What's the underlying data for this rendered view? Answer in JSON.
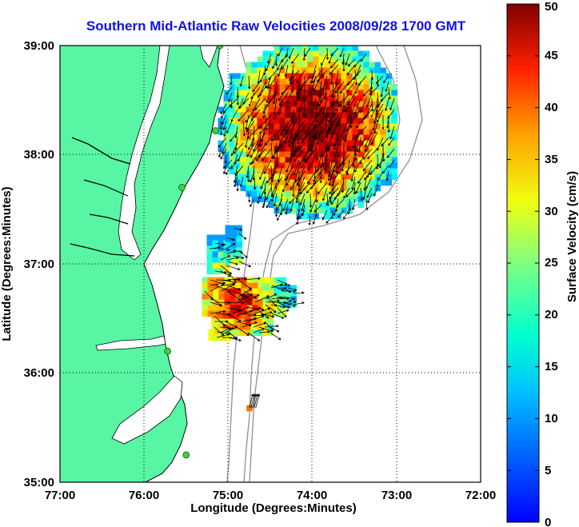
{
  "title": "Southern Mid-Atlantic Raw Velocities 2008/09/28 1700 GMT",
  "map": {
    "xlabel": "Longitude (Degrees:Minutes)",
    "ylabel": "Latitude (Degrees:Minutes)",
    "lon_ticks": [
      "77:00",
      "76:00",
      "75:00",
      "74:00",
      "73:00",
      "72:00"
    ],
    "lat_ticks": [
      "39:00",
      "38:00",
      "37:00",
      "36:00",
      "35:00"
    ],
    "xlim": [
      -77,
      -72
    ],
    "ylim": [
      35,
      39
    ],
    "grid": "dotted",
    "land_color": "#58f5a4",
    "stations": [
      {
        "lon": -75.1,
        "lat": 39.0
      },
      {
        "lon": -75.15,
        "lat": 38.22
      },
      {
        "lon": -75.55,
        "lat": 37.7
      },
      {
        "lon": -75.72,
        "lat": 36.2
      },
      {
        "lon": -75.5,
        "lat": 35.25
      }
    ]
  },
  "colorbar": {
    "label": "Surface Velocity (cm/s)",
    "ticks": [
      "0",
      "5",
      "10",
      "15",
      "20",
      "25",
      "30",
      "35",
      "40",
      "45",
      "50"
    ],
    "min": 0,
    "max": 50,
    "colormap": "jet"
  },
  "chart_data": {
    "type": "heatmap",
    "title": "Southern Mid-Atlantic Raw Velocities 2008/09/28 1700 GMT",
    "xlabel": "Longitude (Degrees:Minutes)",
    "ylabel": "Latitude (Degrees:Minutes)",
    "value_label": "Surface Velocity (cm/s)",
    "xlim": [
      -77,
      -72
    ],
    "ylim": [
      35,
      39
    ],
    "clim": [
      0,
      50
    ],
    "regions": [
      {
        "name": "",
        "center": [
          -74.0,
          38.25
        ],
        "approx_speed_range": [
          15,
          50
        ]
      },
      {
        "name": "",
        "center": [
          -74.9,
          36.65
        ],
        "approx_speed_range": [
          15,
          50
        ]
      },
      {
        "name": "",
        "center": [
          -74.75,
          35.68
        ],
        "approx_speed_range": [
          30,
          45
        ]
      }
    ]
  }
}
